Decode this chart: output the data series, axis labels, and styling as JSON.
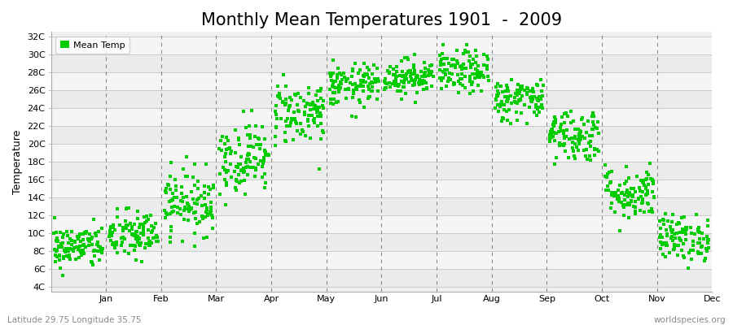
{
  "title": "Monthly Mean Temperatures 1901  -  2009",
  "ylabel": "Temperature",
  "xlabel": "",
  "subtitle_left": "Latitude 29.75 Longitude 35.75",
  "subtitle_right": "worldspecies.org",
  "legend_label": "Mean Temp",
  "dot_color": "#00CC00",
  "background_color": "#FFFFFF",
  "plot_bg_color": "#F0F0F0",
  "band_color_light": "#F8F8F8",
  "band_color_dark": "#E8E8E8",
  "ytick_labels": [
    "4C",
    "6C",
    "8C",
    "10C",
    "12C",
    "14C",
    "16C",
    "18C",
    "20C",
    "22C",
    "24C",
    "26C",
    "28C",
    "30C",
    "32C"
  ],
  "ytick_values": [
    4,
    6,
    8,
    10,
    12,
    14,
    16,
    18,
    20,
    22,
    24,
    26,
    28,
    30,
    32
  ],
  "ylim": [
    3.5,
    32.5
  ],
  "months": [
    "Jan",
    "Feb",
    "Mar",
    "Apr",
    "May",
    "Jun",
    "Jul",
    "Aug",
    "Sep",
    "Oct",
    "Nov",
    "Dec"
  ],
  "month_means": [
    8.5,
    9.8,
    13.5,
    18.5,
    23.5,
    26.5,
    27.5,
    28.0,
    25.0,
    21.0,
    14.5,
    9.5
  ],
  "month_stds": [
    1.2,
    1.4,
    1.8,
    2.0,
    1.8,
    1.2,
    1.0,
    1.2,
    1.2,
    1.5,
    1.5,
    1.3
  ],
  "n_years": 109,
  "seed": 42,
  "title_fontsize": 15,
  "axis_label_fontsize": 9,
  "tick_fontsize": 8,
  "legend_fontsize": 8,
  "dot_size": 5,
  "grid_color": "#BBBBBB",
  "dashed_vline_color": "#888888"
}
